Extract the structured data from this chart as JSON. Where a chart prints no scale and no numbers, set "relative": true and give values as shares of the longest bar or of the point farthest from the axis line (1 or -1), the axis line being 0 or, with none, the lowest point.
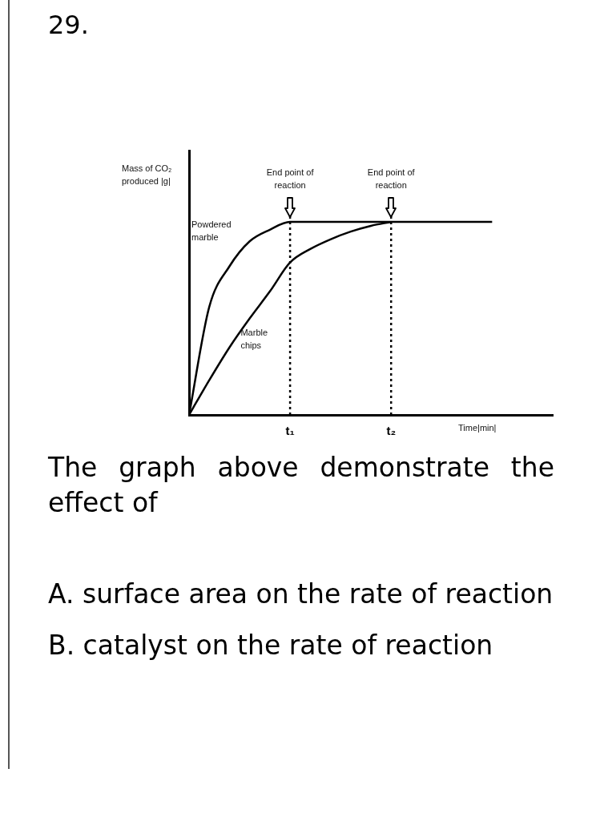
{
  "chart_data": {
    "type": "line",
    "title": "29.",
    "ylabel": "Mass of CO₂ produced |g|",
    "xlabel": "Time|min|",
    "relative": true,
    "legend": false,
    "grid": false,
    "marker": "none",
    "line_style": "solid",
    "categories": [
      null,
      null,
      null,
      null,
      null,
      "t₁",
      null,
      null,
      null,
      null,
      "t₂",
      null,
      null,
      null,
      null,
      null,
      null,
      null,
      null
    ],
    "series": [
      {
        "name": "Powdered marble",
        "color": "#000000",
        "values": [
          0,
          0.56,
          0.77,
          0.9,
          0.96,
          1,
          1,
          1,
          1,
          1,
          1,
          1,
          1,
          1,
          1,
          1,
          null,
          null,
          null
        ]
      },
      {
        "name": "Marble chips",
        "color": "#000000",
        "values": [
          0,
          0.18,
          0.35,
          0.5,
          0.64,
          0.79,
          0.86,
          0.91,
          0.95,
          0.98,
          1,
          null,
          null,
          null,
          null,
          null,
          null,
          null,
          null
        ]
      }
    ],
    "ref_lines": [
      {
        "axis": "x",
        "value": "t₁",
        "label": "End point of reaction",
        "line_style": "dotted",
        "color": "#000000"
      },
      {
        "axis": "x",
        "value": "t₂",
        "label": "End point of reaction",
        "line_style": "dotted",
        "color": "#000000"
      }
    ],
    "annotations": [
      "The graph above demonstrate the effect of",
      "A. surface area on the rate of reaction",
      "B. catalyst on the rate of reaction"
    ]
  }
}
